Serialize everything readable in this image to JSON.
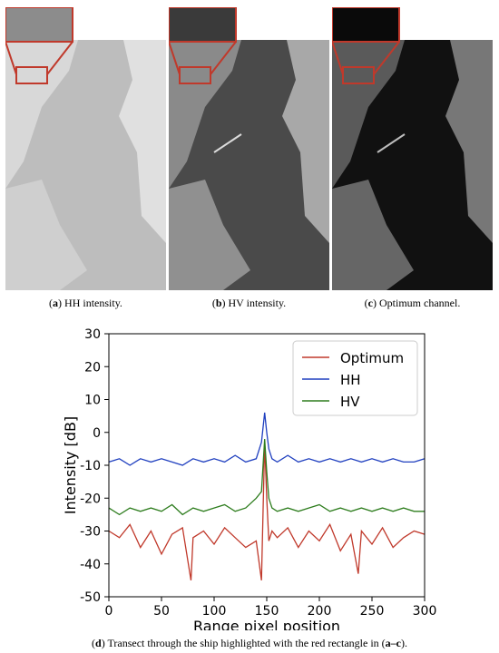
{
  "panels": [
    {
      "id": "a",
      "label": "a",
      "caption": " HH intensity.",
      "tone": "light",
      "inset_color": "#c0392b"
    },
    {
      "id": "b",
      "label": "b",
      "caption": " HV intensity.",
      "tone": "mid",
      "inset_color": "#c0392b"
    },
    {
      "id": "c",
      "label": "c",
      "caption": " Optimum channel.",
      "tone": "dark",
      "inset_color": "#c0392b"
    }
  ],
  "bottom_caption": {
    "label": "d",
    "text_before": " Transect through the ship highlighted with the red rectangle in (",
    "ref": "a–c",
    "text_after": ")."
  },
  "chart_data": {
    "type": "line",
    "xlabel": "Range pixel position",
    "ylabel": "Intensity [dB]",
    "xlim": [
      0,
      300
    ],
    "ylim": [
      -50,
      30
    ],
    "xticks": [
      0,
      50,
      100,
      150,
      200,
      250,
      300
    ],
    "yticks": [
      -50,
      -40,
      -30,
      -20,
      -10,
      0,
      10,
      20,
      30
    ],
    "grid": false,
    "legend_position": "top-right",
    "series": [
      {
        "name": "Optimum",
        "color": "#c0392b",
        "x": [
          0,
          10,
          20,
          30,
          40,
          50,
          60,
          70,
          78,
          80,
          90,
          100,
          110,
          120,
          130,
          140,
          145,
          148,
          150,
          152,
          155,
          160,
          170,
          180,
          190,
          200,
          210,
          220,
          230,
          237,
          240,
          250,
          260,
          270,
          280,
          290,
          300
        ],
        "y": [
          -30,
          -32,
          -28,
          -35,
          -30,
          -37,
          -31,
          -29,
          -45,
          -32,
          -30,
          -34,
          -29,
          -32,
          -35,
          -33,
          -45,
          -3,
          -20,
          -33,
          -30,
          -32,
          -29,
          -35,
          -30,
          -33,
          -28,
          -36,
          -31,
          -43,
          -30,
          -34,
          -29,
          -35,
          -32,
          -30,
          -31
        ]
      },
      {
        "name": "HH",
        "color": "#1f3fbf",
        "x": [
          0,
          10,
          20,
          30,
          40,
          50,
          60,
          70,
          80,
          90,
          100,
          110,
          120,
          130,
          140,
          145,
          148,
          150,
          152,
          155,
          160,
          170,
          180,
          190,
          200,
          210,
          220,
          230,
          240,
          250,
          260,
          270,
          280,
          290,
          300
        ],
        "y": [
          -9,
          -8,
          -10,
          -8,
          -9,
          -8,
          -9,
          -10,
          -8,
          -9,
          -8,
          -9,
          -7,
          -9,
          -8,
          -3,
          6,
          0,
          -5,
          -8,
          -9,
          -7,
          -9,
          -8,
          -9,
          -8,
          -9,
          -8,
          -9,
          -8,
          -9,
          -8,
          -9,
          -9,
          -8
        ]
      },
      {
        "name": "HV",
        "color": "#2e7d1e",
        "x": [
          0,
          10,
          20,
          30,
          40,
          50,
          60,
          70,
          80,
          90,
          100,
          110,
          120,
          130,
          140,
          145,
          148,
          150,
          152,
          155,
          160,
          170,
          180,
          190,
          200,
          210,
          220,
          230,
          240,
          250,
          260,
          270,
          280,
          290,
          300
        ],
        "y": [
          -23,
          -25,
          -23,
          -24,
          -23,
          -24,
          -22,
          -25,
          -23,
          -24,
          -23,
          -22,
          -24,
          -23,
          -20,
          -18,
          -2,
          -12,
          -20,
          -23,
          -24,
          -23,
          -24,
          -23,
          -22,
          -24,
          -23,
          -24,
          -23,
          -24,
          -23,
          -24,
          -23,
          -24,
          -24
        ]
      }
    ]
  }
}
